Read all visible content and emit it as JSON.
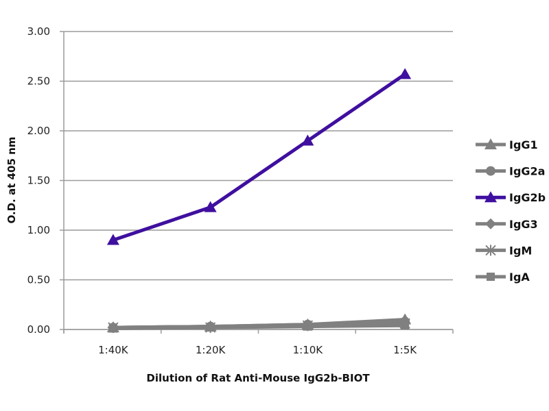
{
  "chart_data": {
    "type": "line",
    "title": "",
    "xlabel": "Dilution of Rat Anti-Mouse IgG2b-BIOT",
    "ylabel": "O.D. at 405 nm",
    "categories": [
      "1:40K",
      "1:20K",
      "1:10K",
      "1:5K"
    ],
    "ylim": [
      0,
      3
    ],
    "yticks": [
      "0.00",
      "0.50",
      "1.00",
      "1.50",
      "2.00",
      "2.50",
      "3.00"
    ],
    "grid": true,
    "legend_position": "right",
    "series": [
      {
        "name": "IgG1",
        "marker": "triangle",
        "color": "#808080",
        "values": [
          0.02,
          0.03,
          0.05,
          0.1
        ]
      },
      {
        "name": "IgG2a",
        "marker": "circle",
        "color": "#808080",
        "values": [
          0.02,
          0.03,
          0.05,
          0.08
        ]
      },
      {
        "name": "IgG2b",
        "marker": "triangle",
        "color": "#3f0f9f",
        "values": [
          0.9,
          1.23,
          1.9,
          2.57
        ]
      },
      {
        "name": "IgG3",
        "marker": "diamond",
        "color": "#808080",
        "values": [
          0.02,
          0.03,
          0.04,
          0.07
        ]
      },
      {
        "name": "IgM",
        "marker": "star",
        "color": "#808080",
        "values": [
          0.02,
          0.02,
          0.04,
          0.06
        ]
      },
      {
        "name": "IgA",
        "marker": "square",
        "color": "#808080",
        "values": [
          0.01,
          0.02,
          0.03,
          0.04
        ]
      }
    ]
  }
}
